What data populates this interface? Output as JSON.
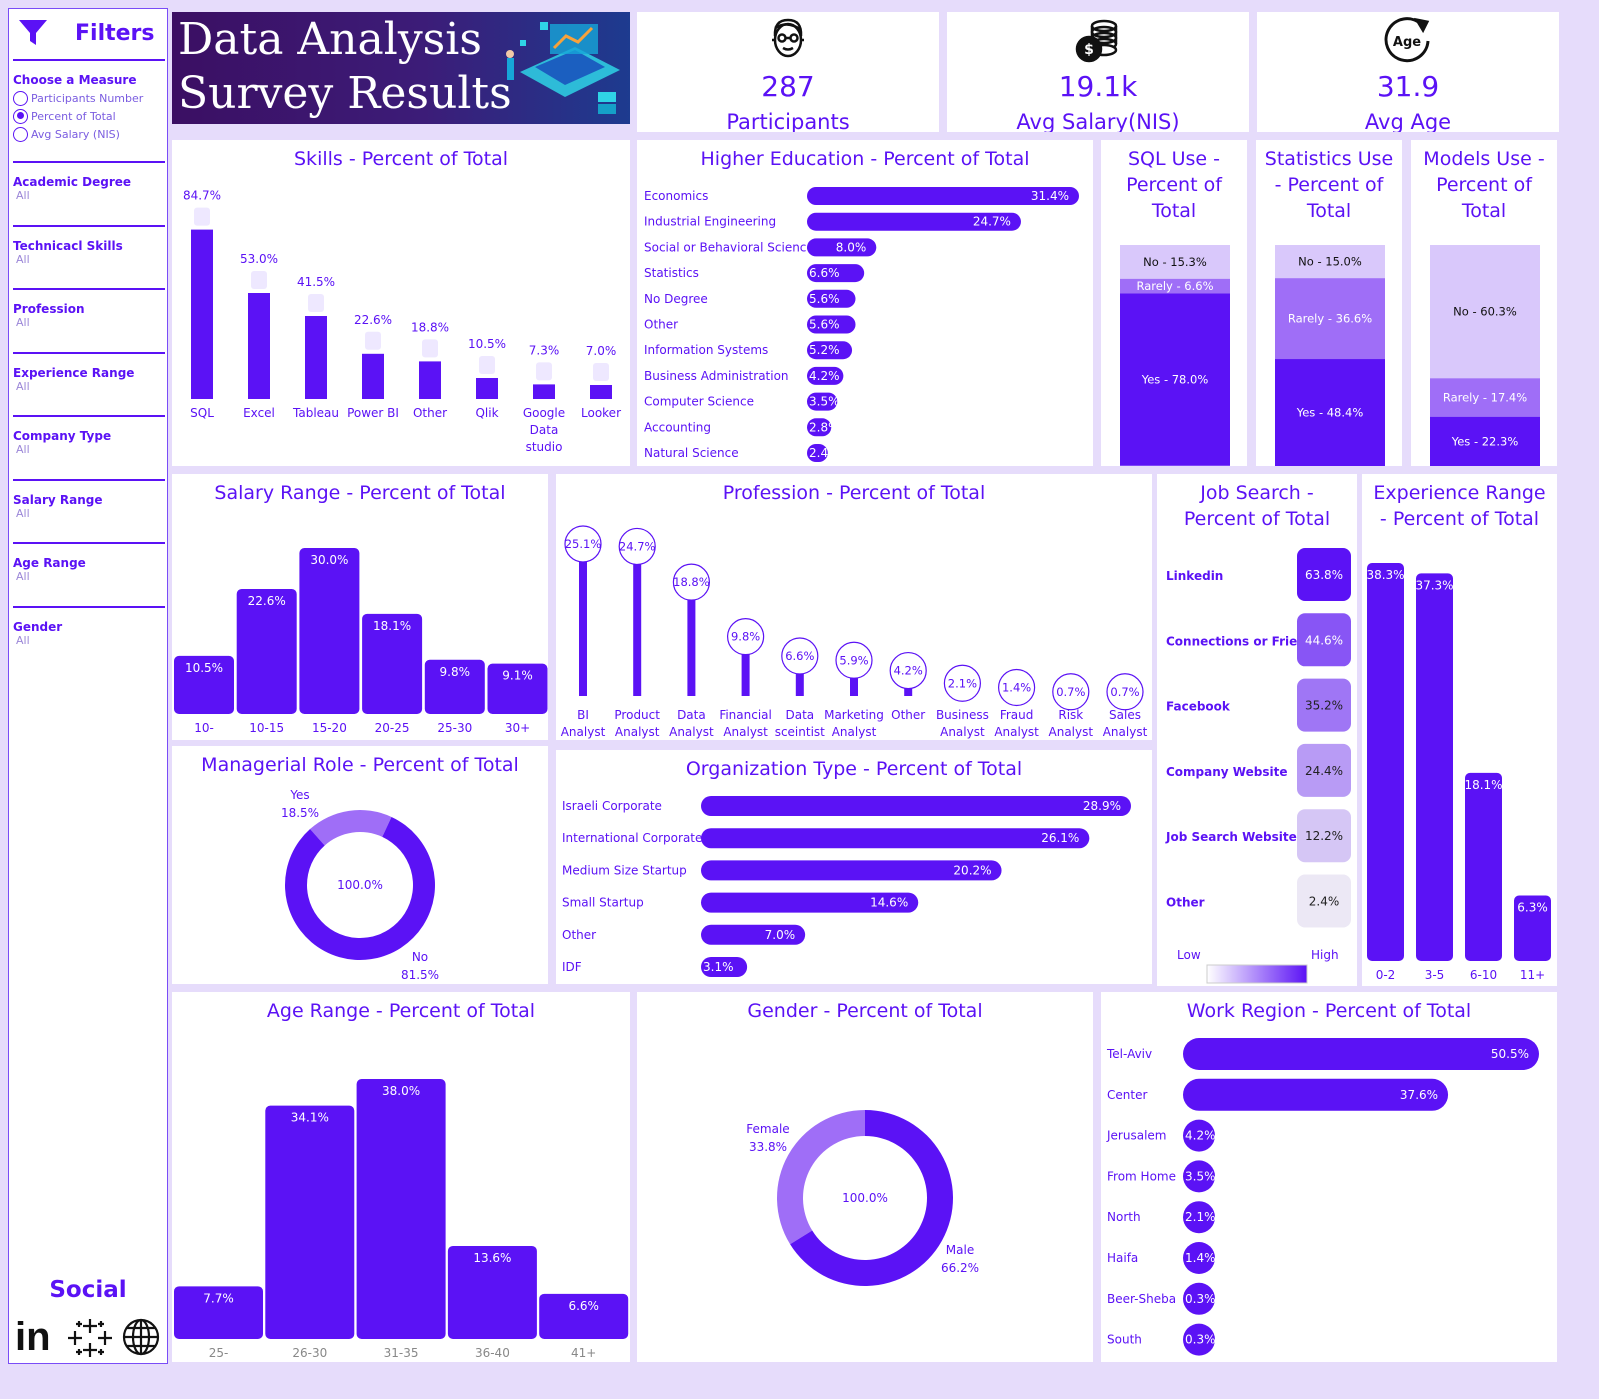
{
  "sidebar": {
    "title": "Filters",
    "measure_label": "Choose a Measure",
    "measures": [
      "Participants Number",
      "Percent of Total",
      "Avg Salary (NIS)"
    ],
    "selected_measure": 1,
    "filters": [
      {
        "label": "Academic Degree",
        "value": "All"
      },
      {
        "label": "Technicacl Skills",
        "value": "All"
      },
      {
        "label": "Profession",
        "value": "All"
      },
      {
        "label": "Experience Range",
        "value": "All"
      },
      {
        "label": "Company Type",
        "value": "All"
      },
      {
        "label": "Salary Range",
        "value": "All"
      },
      {
        "label": "Age Range",
        "value": "All"
      },
      {
        "label": "Gender",
        "value": "All"
      }
    ],
    "social_title": "Social",
    "social_icons": [
      "linkedin-icon",
      "tableau-icon",
      "globe-icon"
    ]
  },
  "banner": {
    "line1": "Data Analysis",
    "line2": "Survey Results"
  },
  "kpis": [
    {
      "value": "287",
      "label": "Participants",
      "icon": "person-icon"
    },
    {
      "value": "19.1k",
      "label": "Avg Salary(NIS)",
      "icon": "coins-icon"
    },
    {
      "value": "31.9",
      "label": "Avg Age",
      "icon": "age-icon"
    }
  ],
  "colors": {
    "primary": "#5b12f5",
    "mid": "#9f6ef7",
    "light": "#d9c8fb",
    "panel_bg": "#ffffff",
    "page_bg": "#e6dcfb"
  },
  "chart_data": [
    {
      "id": "skills",
      "type": "bar",
      "title": "Skills - Percent of Total",
      "categories": [
        "SQL",
        "Excel",
        "Tableau",
        "Power BI",
        "Other",
        "Qlik",
        "Google Data studio",
        "Looker"
      ],
      "values": [
        84.7,
        53.0,
        41.5,
        22.6,
        18.8,
        10.5,
        7.3,
        7.0
      ],
      "labels": [
        "84.7%",
        "53.0%",
        "41.5%",
        "22.6%",
        "18.8%",
        "10.5%",
        "7.3%",
        "7.0%"
      ]
    },
    {
      "id": "education",
      "type": "bar",
      "orientation": "horizontal",
      "title": "Higher Education - Percent of Total",
      "categories": [
        "Economics",
        "Industrial Engineering",
        "Social or Behavioral Science",
        "Statistics",
        "No Degree",
        "Other",
        "Information Systems",
        "Business Administration",
        "Computer Science",
        "Accounting",
        "Natural Science"
      ],
      "values": [
        31.4,
        24.7,
        8.0,
        6.6,
        5.6,
        5.6,
        5.2,
        4.2,
        3.5,
        2.8,
        2.4
      ],
      "labels": [
        "31.4%",
        "24.7%",
        "8.0%",
        "6.6%",
        "5.6%",
        "5.6%",
        "5.2%",
        "4.2%",
        "3.5%",
        "2.8%",
        "2.4%"
      ]
    },
    {
      "id": "sql_use",
      "type": "bar",
      "stacked": true,
      "title": "SQL Use - Percent of Total",
      "segments": [
        {
          "label": "No - 15.3%",
          "value": 15.3
        },
        {
          "label": "Rarely - 6.6%",
          "value": 6.6
        },
        {
          "label": "Yes - 78.0%",
          "value": 78.0
        }
      ]
    },
    {
      "id": "stats_use",
      "type": "bar",
      "stacked": true,
      "title": "Statistics Use - Percent of Total",
      "segments": [
        {
          "label": "No - 15.0%",
          "value": 15.0
        },
        {
          "label": "Rarely - 36.6%",
          "value": 36.6
        },
        {
          "label": "Yes - 48.4%",
          "value": 48.4
        }
      ]
    },
    {
      "id": "models_use",
      "type": "bar",
      "stacked": true,
      "title": "Models Use - Percent of Total",
      "segments": [
        {
          "label": "No - 60.3%",
          "value": 60.3
        },
        {
          "label": "Rarely - 17.4%",
          "value": 17.4
        },
        {
          "label": "Yes - 22.3%",
          "value": 22.3
        }
      ]
    },
    {
      "id": "salary",
      "type": "bar",
      "title": "Salary Range - Percent of Total",
      "categories": [
        "10-",
        "10-15",
        "15-20",
        "20-25",
        "25-30",
        "30+"
      ],
      "values": [
        10.5,
        22.6,
        30.0,
        18.1,
        9.8,
        9.1
      ],
      "labels": [
        "10.5%",
        "22.6%",
        "30.0%",
        "18.1%",
        "9.8%",
        "9.1%"
      ]
    },
    {
      "id": "profession",
      "type": "bar",
      "style": "lollipop",
      "title": "Profession - Percent of Total",
      "categories": [
        "BI Analyst",
        "Product Analyst",
        "Data Analyst",
        "Financial Analyst",
        "Data sceintist",
        "Marketing Analyst",
        "Other",
        "Business Analyst",
        "Fraud Analyst",
        "Risk Analyst",
        "Sales Analyst"
      ],
      "values": [
        25.1,
        24.7,
        18.8,
        9.8,
        6.6,
        5.9,
        4.2,
        2.1,
        1.4,
        0.7,
        0.7
      ],
      "labels": [
        "25.1%",
        "24.7%",
        "18.8%",
        "9.8%",
        "6.6%",
        "5.9%",
        "4.2%",
        "2.1%",
        "1.4%",
        "0.7%",
        "0.7%"
      ]
    },
    {
      "id": "job_search",
      "type": "heatmap",
      "title": "Job Search - Percent of Total",
      "categories": [
        "Linkedin",
        "Connections or Friends",
        "Facebook",
        "Company Website",
        "Job Search Website",
        "Other"
      ],
      "values": [
        63.8,
        44.6,
        35.2,
        24.4,
        12.2,
        2.4
      ],
      "labels": [
        "63.8%",
        "44.6%",
        "35.2%",
        "24.4%",
        "12.2%",
        "2.4%"
      ],
      "legend": {
        "low": "Low",
        "high": "High"
      }
    },
    {
      "id": "experience",
      "type": "bar",
      "title": "Experience Range - Percent of Total",
      "categories": [
        "0-2",
        "3-5",
        "6-10",
        "11+"
      ],
      "values": [
        38.3,
        37.3,
        18.1,
        6.3
      ],
      "labels": [
        "38.3%",
        "37.3%",
        "18.1%",
        "6.3%"
      ]
    },
    {
      "id": "managerial",
      "type": "pie",
      "donut": true,
      "title": "Managerial Role - Percent of Total",
      "center_label": "100.0%",
      "slices": [
        {
          "name": "Yes",
          "value": 18.5,
          "label": "18.5%"
        },
        {
          "name": "No",
          "value": 81.5,
          "label": "81.5%"
        }
      ]
    },
    {
      "id": "organization",
      "type": "bar",
      "orientation": "horizontal",
      "title": "Organization Type - Percent of Total",
      "categories": [
        "Israeli Corporate",
        "International Corporate",
        "Medium Size Startup",
        "Small Startup",
        "Other",
        "IDF"
      ],
      "values": [
        28.9,
        26.1,
        20.2,
        14.6,
        7.0,
        3.1
      ],
      "labels": [
        "28.9%",
        "26.1%",
        "20.2%",
        "14.6%",
        "7.0%",
        "3.1%"
      ]
    },
    {
      "id": "age",
      "type": "bar",
      "title": "Age Range - Percent of Total",
      "categories": [
        "25-",
        "26-30",
        "31-35",
        "36-40",
        "41+"
      ],
      "values": [
        7.7,
        34.1,
        38.0,
        13.6,
        6.6
      ],
      "labels": [
        "7.7%",
        "34.1%",
        "38.0%",
        "13.6%",
        "6.6%"
      ]
    },
    {
      "id": "gender",
      "type": "pie",
      "donut": true,
      "title": "Gender - Percent of Total",
      "center_label": "100.0%",
      "slices": [
        {
          "name": "Female",
          "value": 33.8,
          "label": "33.8%"
        },
        {
          "name": "Male",
          "value": 66.2,
          "label": "66.2%"
        }
      ]
    },
    {
      "id": "region",
      "type": "bar",
      "orientation": "horizontal",
      "title": "Work Region - Percent of Total",
      "categories": [
        "Tel-Aviv",
        "Center",
        "Jerusalem",
        "From Home",
        "North",
        "Haifa",
        "Beer-Sheba",
        "South"
      ],
      "values": [
        50.5,
        37.6,
        4.2,
        3.5,
        2.1,
        1.4,
        0.3,
        0.3
      ],
      "labels": [
        "50.5%",
        "37.6%",
        "4.2%",
        "3.5%",
        "2.1%",
        "1.4%",
        "0.3%",
        "0.3%"
      ]
    }
  ]
}
